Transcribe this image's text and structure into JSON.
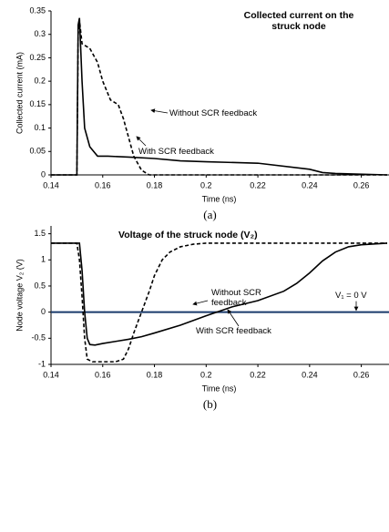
{
  "chart_data": [
    {
      "type": "line",
      "title": "Collected current on the struck node",
      "xlabel": "Time (ns)",
      "ylabel": "Collected current (mA)",
      "panel": "(a)",
      "xlim": [
        0.14,
        0.27
      ],
      "xticks": [
        0.14,
        0.16,
        0.18,
        0.2,
        0.22,
        0.24,
        0.26
      ],
      "ylim": [
        0,
        0.35
      ],
      "yticks": [
        0,
        0.05,
        0.1,
        0.15,
        0.2,
        0.25,
        0.3,
        0.35
      ],
      "series": [
        {
          "name": "Without SCR feedback",
          "color": "#000000",
          "dash": true,
          "x": [
            0.14,
            0.15,
            0.1505,
            0.151,
            0.152,
            0.155,
            0.158,
            0.16,
            0.163,
            0.166,
            0.168,
            0.17,
            0.172,
            0.175,
            0.178,
            0.27
          ],
          "values": [
            0,
            0,
            0.3,
            0.33,
            0.28,
            0.27,
            0.24,
            0.2,
            0.16,
            0.15,
            0.12,
            0.08,
            0.04,
            0.01,
            0,
            0
          ]
        },
        {
          "name": "With SCR feedback",
          "color": "#000000",
          "dash": false,
          "x": [
            0.14,
            0.15,
            0.1505,
            0.151,
            0.152,
            0.153,
            0.155,
            0.158,
            0.162,
            0.17,
            0.18,
            0.19,
            0.2,
            0.22,
            0.24,
            0.245,
            0.25,
            0.27
          ],
          "values": [
            0,
            0,
            0.32,
            0.335,
            0.2,
            0.1,
            0.06,
            0.04,
            0.04,
            0.038,
            0.035,
            0.03,
            0.028,
            0.025,
            0.012,
            0.005,
            0.003,
            0
          ]
        }
      ]
    },
    {
      "type": "line",
      "title": "Voltage of the struck node (V₂)",
      "xlabel": "Time (ns)",
      "ylabel": "Node voltage V₂ (V)",
      "panel": "(b)",
      "xlim": [
        0.14,
        0.27
      ],
      "xticks": [
        0.14,
        0.16,
        0.18,
        0.2,
        0.22,
        0.24,
        0.26
      ],
      "ylim": [
        -1,
        1.65
      ],
      "yticks": [
        -1,
        -0.5,
        0,
        0.5,
        1,
        1.5
      ],
      "hline": {
        "value": 0,
        "label": "V₁ = 0 V",
        "color": "#1a3a6b"
      },
      "series": [
        {
          "name": "Without SCR feedback",
          "color": "#000000",
          "dash": true,
          "x": [
            0.14,
            0.15,
            0.151,
            0.152,
            0.153,
            0.154,
            0.156,
            0.165,
            0.168,
            0.17,
            0.172,
            0.175,
            0.178,
            0.18,
            0.183,
            0.186,
            0.19,
            0.195,
            0.2,
            0.27
          ],
          "values": [
            1.32,
            1.32,
            1.0,
            0.3,
            -0.5,
            -0.9,
            -0.95,
            -0.95,
            -0.9,
            -0.7,
            -0.4,
            0,
            0.4,
            0.7,
            1.0,
            1.15,
            1.25,
            1.3,
            1.32,
            1.32
          ]
        },
        {
          "name": "With SCR feedback",
          "color": "#000000",
          "dash": false,
          "x": [
            0.14,
            0.151,
            0.152,
            0.153,
            0.154,
            0.155,
            0.157,
            0.16,
            0.165,
            0.17,
            0.175,
            0.18,
            0.19,
            0.2,
            0.21,
            0.22,
            0.23,
            0.235,
            0.24,
            0.245,
            0.25,
            0.255,
            0.26,
            0.27
          ],
          "values": [
            1.32,
            1.32,
            0.8,
            0,
            -0.5,
            -0.62,
            -0.63,
            -0.6,
            -0.56,
            -0.52,
            -0.47,
            -0.4,
            -0.25,
            -0.07,
            0.1,
            0.22,
            0.4,
            0.55,
            0.75,
            0.98,
            1.15,
            1.25,
            1.29,
            1.32
          ]
        }
      ]
    }
  ]
}
